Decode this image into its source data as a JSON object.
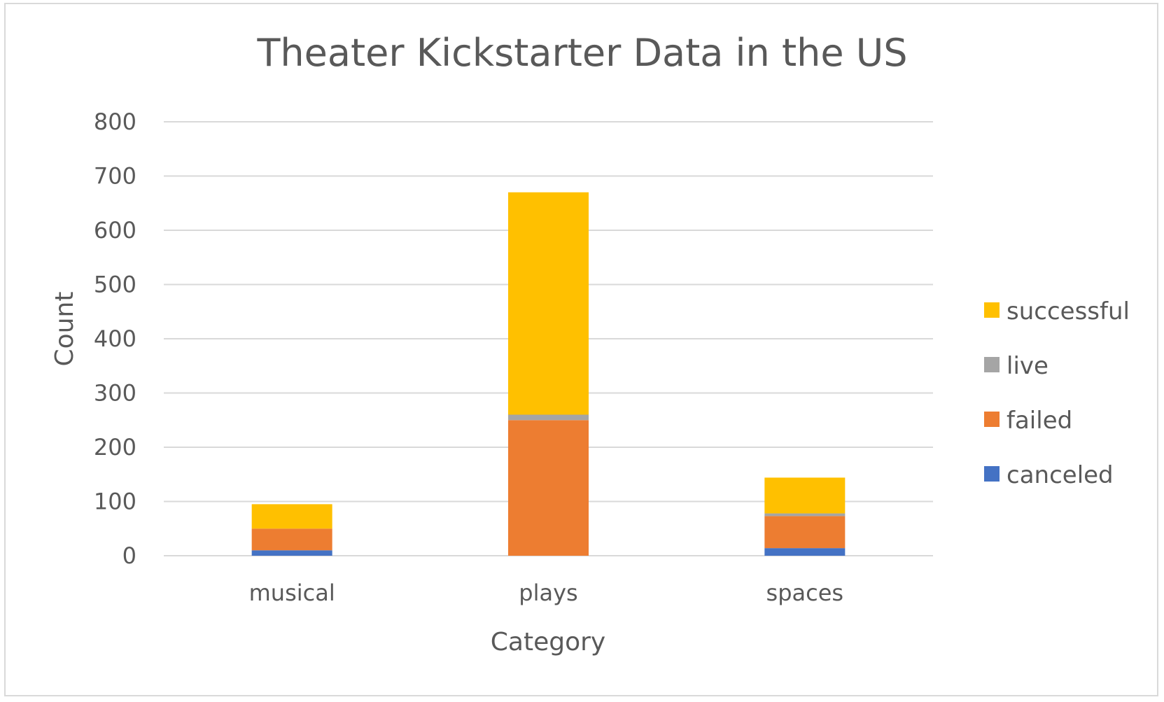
{
  "chart_data": {
    "type": "bar",
    "stacked": true,
    "title": "Theater Kickstarter Data in the US",
    "xlabel": "Category",
    "ylabel": "Count",
    "categories": [
      "musical",
      "plays",
      "spaces"
    ],
    "series": [
      {
        "name": "canceled",
        "color": "#4472C4",
        "values": [
          10,
          0,
          14
        ]
      },
      {
        "name": "failed",
        "color": "#ED7D31",
        "values": [
          40,
          250,
          59
        ]
      },
      {
        "name": "live",
        "color": "#A5A5A5",
        "values": [
          0,
          10,
          5
        ]
      },
      {
        "name": "successful",
        "color": "#FFC000",
        "values": [
          45,
          410,
          66
        ]
      }
    ],
    "ylim": [
      0,
      800
    ],
    "yticks": [
      "0",
      "100",
      "200",
      "300",
      "400",
      "500",
      "600",
      "700",
      "800"
    ],
    "grid": true,
    "legend_position": "right"
  }
}
